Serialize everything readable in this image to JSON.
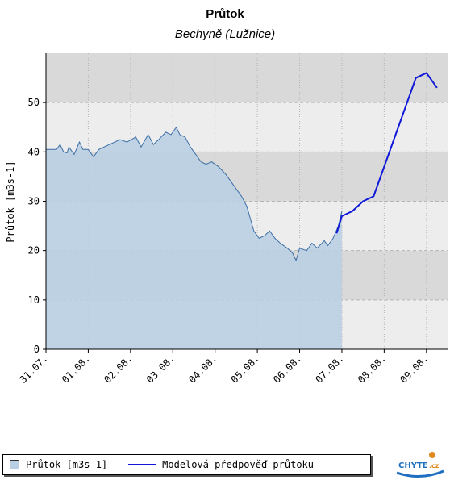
{
  "chart_data": {
    "type": "line",
    "title": "Průtok",
    "subtitle": "Bechyně (Lužnice)",
    "ylabel": "Průtok [m3s-1]",
    "xlabel": "",
    "ylim": [
      0,
      60
    ],
    "xlim": [
      "2022-07-31 00:00",
      "2022-08-09 12:00"
    ],
    "yticks": [
      0,
      10,
      20,
      30,
      40,
      50
    ],
    "xticks": [
      "31.07.",
      "01.08.",
      "02.08.",
      "03.08.",
      "04.08.",
      "05.08.",
      "06.08.",
      "07.08.",
      "08.08.",
      "09.08."
    ],
    "grid": true,
    "series": [
      {
        "name": "Průtok [m3s-1]",
        "style": "area",
        "color": "#3c6ea5",
        "fill": "#b9cfe3",
        "points": [
          [
            "2022-07-31 00:00",
            40.5
          ],
          [
            "2022-07-31 06:00",
            40.5
          ],
          [
            "2022-07-31 08:00",
            41.5
          ],
          [
            "2022-07-31 10:00",
            40.0
          ],
          [
            "2022-07-31 12:00",
            39.8
          ],
          [
            "2022-07-31 13:00",
            41.0
          ],
          [
            "2022-07-31 16:00",
            39.5
          ],
          [
            "2022-07-31 19:00",
            42.0
          ],
          [
            "2022-07-31 21:00",
            40.5
          ],
          [
            "2022-08-01 00:00",
            40.5
          ],
          [
            "2022-08-01 03:00",
            39.0
          ],
          [
            "2022-08-01 06:00",
            40.5
          ],
          [
            "2022-08-01 12:00",
            41.5
          ],
          [
            "2022-08-01 18:00",
            42.5
          ],
          [
            "2022-08-01 22:00",
            42.0
          ],
          [
            "2022-08-02 03:00",
            43.0
          ],
          [
            "2022-08-02 06:00",
            41.0
          ],
          [
            "2022-08-02 10:00",
            43.5
          ],
          [
            "2022-08-02 13:00",
            41.5
          ],
          [
            "2022-08-02 16:00",
            42.5
          ],
          [
            "2022-08-02 20:00",
            44.0
          ],
          [
            "2022-08-02 23:00",
            43.5
          ],
          [
            "2022-08-03 02:00",
            45.0
          ],
          [
            "2022-08-03 04:00",
            43.5
          ],
          [
            "2022-08-03 07:00",
            43.0
          ],
          [
            "2022-08-03 10:00",
            41.0
          ],
          [
            "2022-08-03 13:00",
            39.5
          ],
          [
            "2022-08-03 16:00",
            38.0
          ],
          [
            "2022-08-03 19:00",
            37.5
          ],
          [
            "2022-08-03 22:00",
            38.0
          ],
          [
            "2022-08-04 02:00",
            37.0
          ],
          [
            "2022-08-04 06:00",
            35.5
          ],
          [
            "2022-08-04 09:00",
            34.0
          ],
          [
            "2022-08-04 12:00",
            32.5
          ],
          [
            "2022-08-04 15:00",
            31.0
          ],
          [
            "2022-08-04 18:00",
            29.0
          ],
          [
            "2022-08-04 20:00",
            26.5
          ],
          [
            "2022-08-04 22:00",
            24.0
          ],
          [
            "2022-08-05 01:00",
            22.5
          ],
          [
            "2022-08-05 04:00",
            23.0
          ],
          [
            "2022-08-05 07:00",
            24.0
          ],
          [
            "2022-08-05 10:00",
            22.5
          ],
          [
            "2022-08-05 13:00",
            21.5
          ],
          [
            "2022-08-05 17:00",
            20.5
          ],
          [
            "2022-08-05 20:00",
            19.5
          ],
          [
            "2022-08-05 22:00",
            18.0
          ],
          [
            "2022-08-06 00:00",
            20.5
          ],
          [
            "2022-08-06 04:00",
            20.0
          ],
          [
            "2022-08-06 07:00",
            21.5
          ],
          [
            "2022-08-06 10:00",
            20.5
          ],
          [
            "2022-08-06 14:00",
            22.0
          ],
          [
            "2022-08-06 16:00",
            21.0
          ],
          [
            "2022-08-06 19:00",
            22.5
          ],
          [
            "2022-08-06 22:00",
            25.0
          ],
          [
            "2022-08-07 00:00",
            28.0
          ]
        ]
      },
      {
        "name": "Modelová předpověď průtoku",
        "style": "line",
        "color": "#0f18d8",
        "points": [
          [
            "2022-08-06 21:00",
            23.5
          ],
          [
            "2022-08-07 00:00",
            27.0
          ],
          [
            "2022-08-07 06:00",
            28.0
          ],
          [
            "2022-08-07 12:00",
            30.0
          ],
          [
            "2022-08-07 18:00",
            31.0
          ],
          [
            "2022-08-08 00:00",
            37.0
          ],
          [
            "2022-08-08 06:00",
            43.0
          ],
          [
            "2022-08-08 12:00",
            49.0
          ],
          [
            "2022-08-08 18:00",
            55.0
          ],
          [
            "2022-08-09 00:00",
            56.0
          ],
          [
            "2022-08-09 06:00",
            53.0
          ]
        ]
      }
    ],
    "legend_position": "bottom"
  },
  "logo": {
    "text": "CHYTE",
    "suffix": ".cz"
  },
  "colors": {
    "band_light": "#ededed",
    "band_dark": "#d9d9d9",
    "area_fill": "#b9cfe3",
    "area_line": "#3c6ea5",
    "forecast": "#0f18d8"
  }
}
